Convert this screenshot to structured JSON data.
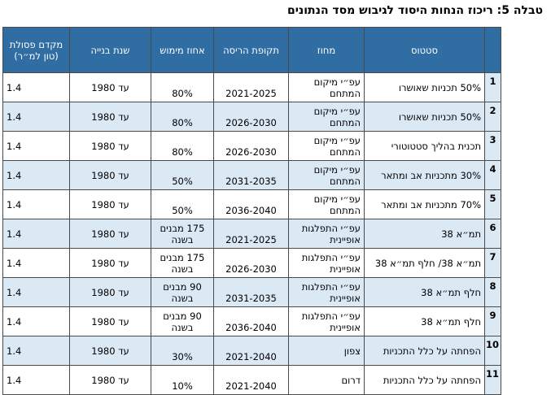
{
  "caption": "טבלה 5: ריכוז הנחות היסוד לגיבוש מסד הנתונים",
  "headers": {
    "status": "סטטוס",
    "region": "מחוז",
    "period": "תקופת הריסה",
    "pct": "אחוז מימוש",
    "year": "שנת בנייה",
    "ratio": "מקדם פסולת (טון למ״ר)"
  },
  "rows": [
    {
      "num": "1",
      "status": "50% תכניות שאושרו",
      "region": "עפ״י מיקום המתחם",
      "period": "2021-2025",
      "pct": "80%",
      "year": "עד 1980",
      "ratio": "1.4"
    },
    {
      "num": "2",
      "status": "50% תכניות שאושרו",
      "region": "עפ״י מיקום המתחם",
      "period": "2026-2030",
      "pct": "80%",
      "year": "עד 1980",
      "ratio": "1.4"
    },
    {
      "num": "3",
      "status": "תכנית בהליך סטטוטורי",
      "region": "עפ״י מיקום המתחם",
      "period": "2026-2030",
      "pct": "80%",
      "year": "עד 1980",
      "ratio": "1.4"
    },
    {
      "num": "4",
      "status": "30% מתכניות אב ומתאר",
      "region": "עפ״י מיקום המתחם",
      "period": "2031-2035",
      "pct": "50%",
      "year": "עד 1980",
      "ratio": "1.4"
    },
    {
      "num": "5",
      "status": "70% מתכניות אב ומתאר",
      "region": "עפ״י מיקום המתחם",
      "period": "2036-2040",
      "pct": "50%",
      "year": "עד 1980",
      "ratio": "1.4"
    },
    {
      "num": "6",
      "status": "תמ״א 38",
      "region": "עפ״י התפלגות אופיינית",
      "period": "2021-2025",
      "pct": "175 מבנים בשנה",
      "year": "עד 1980",
      "ratio": "1.4"
    },
    {
      "num": "7",
      "status": "תמ״א 38/ חלף תמ״א 38",
      "region": "עפ״י התפלגות אופיינית",
      "period": "2026-2030",
      "pct": "175 מבנים בשנה",
      "year": "עד 1980",
      "ratio": "1.4"
    },
    {
      "num": "8",
      "status": "חלף תמ״א 38",
      "region": "עפ״י התפלגות אופיינית",
      "period": "2031-2035",
      "pct": "90 מבנים בשנה",
      "year": "עד 1980",
      "ratio": "1.4"
    },
    {
      "num": "9",
      "status": "חלף תמ״א 38",
      "region": "עפ״י התפלגות אופיינית",
      "period": "2036-2040",
      "pct": "90 מבנים בשנה",
      "year": "עד 1980",
      "ratio": "1.4"
    },
    {
      "num": "10",
      "status": "הפחתה על כלל התכניות",
      "region": "צפון",
      "period": "2021-2040",
      "pct": "30%",
      "year": "עד 1980",
      "ratio": "1.4"
    },
    {
      "num": "11",
      "status": "הפחתה על כלל התכניות",
      "region": "דרום",
      "period": "2021-2040",
      "pct": "10%",
      "year": "עד 1980",
      "ratio": "1.4"
    }
  ]
}
